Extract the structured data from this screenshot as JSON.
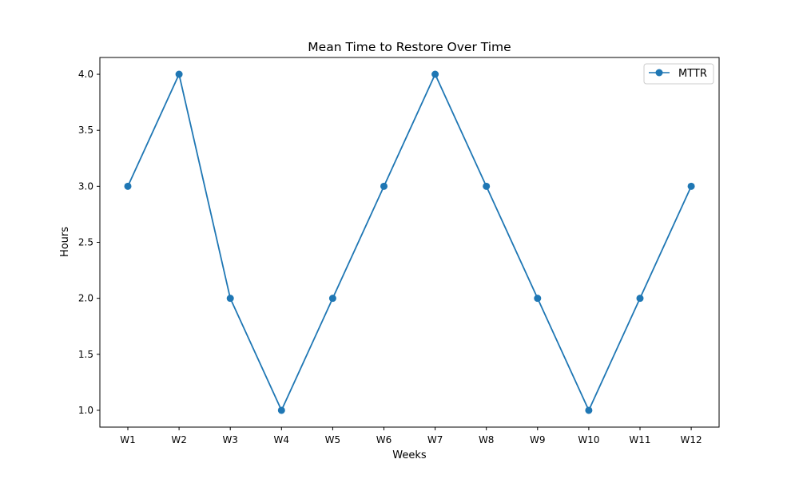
{
  "chart_data": {
    "type": "line",
    "title": "Mean Time to Restore Over Time",
    "xlabel": "Weeks",
    "ylabel": "Hours",
    "categories": [
      "W1",
      "W2",
      "W3",
      "W4",
      "W5",
      "W6",
      "W7",
      "W8",
      "W9",
      "W10",
      "W11",
      "W12"
    ],
    "series": [
      {
        "name": "MTTR",
        "values": [
          3,
          4,
          2,
          1,
          2,
          3,
          4,
          3,
          2,
          1,
          2,
          3
        ],
        "color": "#1f77b4",
        "marker": "circle"
      }
    ],
    "ylim": [
      0.85,
      4.15
    ],
    "yticks": [
      "1.0",
      "1.5",
      "2.0",
      "2.5",
      "3.0",
      "3.5",
      "4.0"
    ],
    "grid": false,
    "legend_position": "top-right"
  }
}
